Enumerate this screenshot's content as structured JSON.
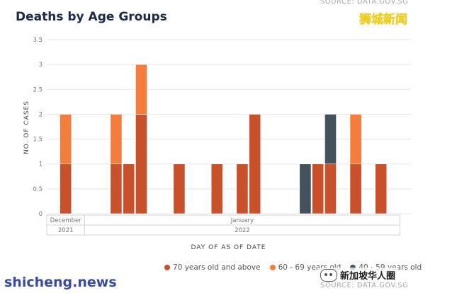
{
  "header": {
    "source_top": "SOURCE: DATA.GOV.SG",
    "title": "Deaths by Age Groups",
    "watermark_top": "狮城新闻"
  },
  "footer": {
    "watermark_bottom": "shicheng.news",
    "watermark_logo": "新加坡华人圈",
    "source_bottom": "SOURCE: DATA.GOV.SG"
  },
  "colors": {
    "age_70_plus": "#c8502a",
    "age_60_69": "#f47c3c",
    "age_40_59": "#44525e",
    "grid": "#e6e6e6",
    "axis_text": "#777777"
  },
  "chart_data": {
    "type": "bar",
    "stacked": true,
    "title": "Deaths by Age Groups",
    "xlabel": "DAY OF AS OF DATE",
    "ylabel": "NO. OF CASES",
    "ylim": [
      0,
      3.5
    ],
    "yticks": [
      "0",
      "0.5",
      "1",
      "1.5",
      "2",
      "2.5",
      "3",
      "3.5"
    ],
    "grid": true,
    "legend_position": "bottom-right",
    "x_slot_count": 28,
    "x_header_rows": [
      [
        {
          "label": "December",
          "slot_start": 0,
          "slot_end": 3
        },
        {
          "label": "January",
          "slot_start": 3,
          "slot_end": 28
        }
      ],
      [
        {
          "label": "2021",
          "slot_start": 0,
          "slot_end": 3
        },
        {
          "label": "2022",
          "slot_start": 3,
          "slot_end": 28
        }
      ]
    ],
    "bars": [
      {
        "slot": 1,
        "values": [
          1,
          1,
          0
        ]
      },
      {
        "slot": 5,
        "values": [
          1,
          1,
          0
        ]
      },
      {
        "slot": 6,
        "values": [
          1,
          0,
          0
        ]
      },
      {
        "slot": 7,
        "values": [
          2,
          1,
          0
        ]
      },
      {
        "slot": 10,
        "values": [
          1,
          0,
          0
        ]
      },
      {
        "slot": 13,
        "values": [
          1,
          0,
          0
        ]
      },
      {
        "slot": 15,
        "values": [
          1,
          0,
          0
        ]
      },
      {
        "slot": 16,
        "values": [
          2,
          0,
          0
        ]
      },
      {
        "slot": 20,
        "values": [
          0,
          0,
          1
        ]
      },
      {
        "slot": 21,
        "values": [
          1,
          0,
          0
        ]
      },
      {
        "slot": 22,
        "values": [
          1,
          0,
          1
        ]
      },
      {
        "slot": 24,
        "values": [
          1,
          1,
          0
        ]
      },
      {
        "slot": 26,
        "values": [
          1,
          0,
          0
        ]
      }
    ],
    "series": [
      {
        "name": "70 years old and above",
        "color_key": "age_70_plus"
      },
      {
        "name": "60 - 69 years old",
        "color_key": "age_60_69"
      },
      {
        "name": "40 - 59 years old",
        "color_key": "age_40_59"
      }
    ]
  }
}
